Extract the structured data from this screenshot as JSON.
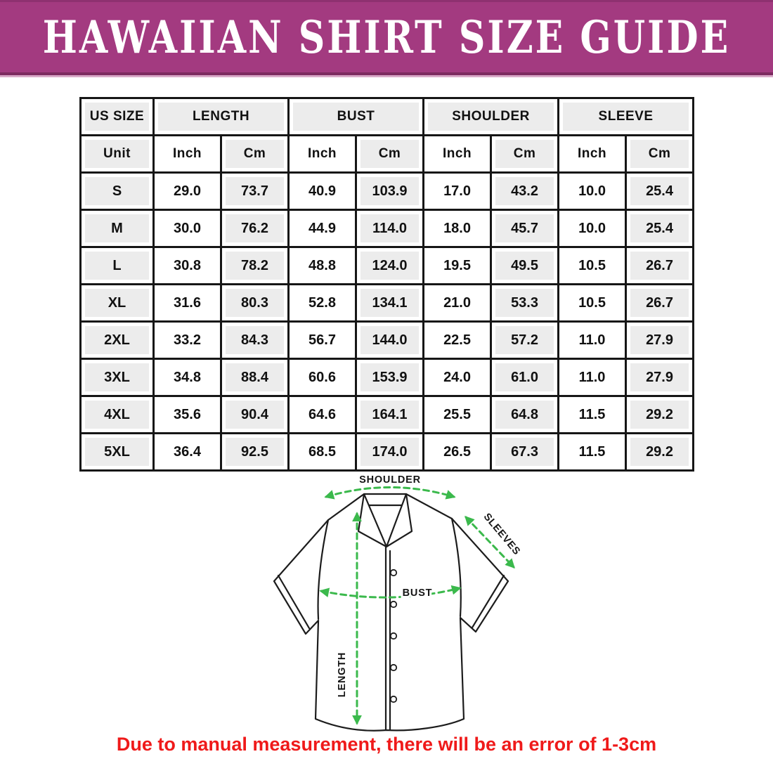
{
  "banner": {
    "title": "HAWAIIAN SHIRT SIZE GUIDE",
    "bg_color": "#a33a80",
    "edge_dark_color": "#7d2b60",
    "edge_light_color": "#d9a9c9",
    "text_color": "#ffffff"
  },
  "table": {
    "groups": [
      "US SIZE",
      "LENGTH",
      "BUST",
      "SHOULDER",
      "SLEEVE"
    ],
    "units": [
      "Unit",
      "Inch",
      "Cm",
      "Inch",
      "Cm",
      "Inch",
      "Cm",
      "Inch",
      "Cm"
    ],
    "rows": [
      {
        "size": "S",
        "values": [
          "29.0",
          "73.7",
          "40.9",
          "103.9",
          "17.0",
          "43.2",
          "10.0",
          "25.4"
        ]
      },
      {
        "size": "M",
        "values": [
          "30.0",
          "76.2",
          "44.9",
          "114.0",
          "18.0",
          "45.7",
          "10.0",
          "25.4"
        ]
      },
      {
        "size": "L",
        "values": [
          "30.8",
          "78.2",
          "48.8",
          "124.0",
          "19.5",
          "49.5",
          "10.5",
          "26.7"
        ]
      },
      {
        "size": "XL",
        "values": [
          "31.6",
          "80.3",
          "52.8",
          "134.1",
          "21.0",
          "53.3",
          "10.5",
          "26.7"
        ]
      },
      {
        "size": "2XL",
        "values": [
          "33.2",
          "84.3",
          "56.7",
          "144.0",
          "22.5",
          "57.2",
          "11.0",
          "27.9"
        ]
      },
      {
        "size": "3XL",
        "values": [
          "34.8",
          "88.4",
          "60.6",
          "153.9",
          "24.0",
          "61.0",
          "11.0",
          "27.9"
        ]
      },
      {
        "size": "4XL",
        "values": [
          "35.6",
          "90.4",
          "64.6",
          "164.1",
          "25.5",
          "64.8",
          "11.5",
          "29.2"
        ]
      },
      {
        "size": "5XL",
        "values": [
          "36.4",
          "92.5",
          "68.5",
          "174.0",
          "26.5",
          "67.3",
          "11.5",
          "29.2"
        ]
      }
    ]
  },
  "diagram": {
    "arrow_color": "#3bb94c",
    "outline_color": "#1c1c1c",
    "labels": {
      "shoulder": "SHOULDER",
      "sleeves": "SLEEVES",
      "bust": "BUST",
      "length": "LENGTH"
    }
  },
  "footer": {
    "note": "Due to manual measurement, there will be an error of 1-3cm",
    "color": "#ef1a1a"
  }
}
